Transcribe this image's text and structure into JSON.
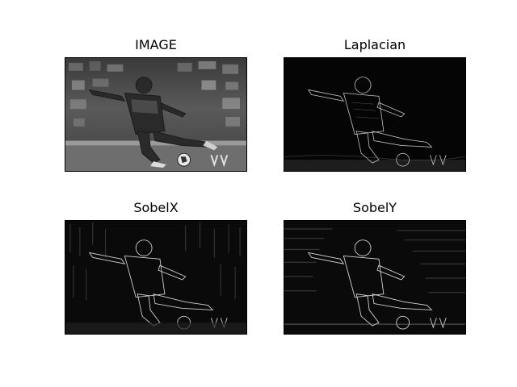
{
  "figure": {
    "background": "#ffffff",
    "panels": [
      {
        "title": "IMAGE",
        "image": "grayscale photograph of a soccer player kicking a ball, stadium crowd in background",
        "style": "original"
      },
      {
        "title": "Laplacian",
        "image": "laplacian edge map of the soccer player photograph",
        "style": "edges"
      },
      {
        "title": "SobelX",
        "image": "horizontal sobel gradient of the soccer player photograph",
        "style": "edges"
      },
      {
        "title": "SobelY",
        "image": "vertical sobel gradient of the soccer player photograph",
        "style": "edges"
      }
    ]
  }
}
